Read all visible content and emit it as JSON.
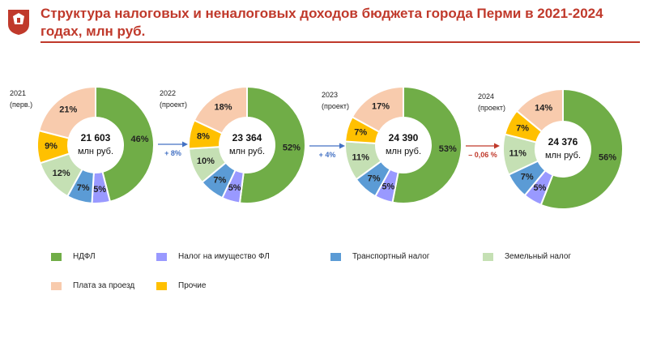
{
  "title": "Структура налоговых и неналоговых доходов бюджета города Перми в 2021-2024 годах, млн руб.",
  "colors": {
    "ndfl": "#70ad47",
    "property": "#9999ff",
    "transport": "#5b9bd5",
    "land": "#c5e0b4",
    "travel": "#f8cbad",
    "other": "#ffc000",
    "title": "#c0392b",
    "arrow_up": "#4472c4",
    "arrow_down": "#c0392b"
  },
  "chart_data": [
    {
      "type": "pie",
      "year_label": "2021",
      "status_label": "(перв.)",
      "total": "21 603",
      "unit": "млн руб.",
      "slices": [
        {
          "key": "ndfl",
          "value": 46,
          "label": "46%"
        },
        {
          "key": "property",
          "value": 5,
          "label": "5%"
        },
        {
          "key": "transport",
          "value": 7,
          "label": "7%"
        },
        {
          "key": "land",
          "value": 12,
          "label": "12%"
        },
        {
          "key": "other",
          "value": 9,
          "label": "9%"
        },
        {
          "key": "travel",
          "value": 21,
          "label": "21%"
        }
      ]
    },
    {
      "type": "pie",
      "year_label": "2022",
      "status_label": "(проект)",
      "total": "23 364",
      "unit": "млн руб.",
      "slices": [
        {
          "key": "ndfl",
          "value": 52,
          "label": "52%"
        },
        {
          "key": "property",
          "value": 5,
          "label": "5%"
        },
        {
          "key": "transport",
          "value": 7,
          "label": "7%"
        },
        {
          "key": "land",
          "value": 10,
          "label": "10%"
        },
        {
          "key": "other",
          "value": 8,
          "label": "8%"
        },
        {
          "key": "travel",
          "value": 18,
          "label": "18%"
        }
      ]
    },
    {
      "type": "pie",
      "year_label": "2023",
      "status_label": "(проект)",
      "total": "24 390",
      "unit": "млн руб.",
      "slices": [
        {
          "key": "ndfl",
          "value": 53,
          "label": "53%"
        },
        {
          "key": "property",
          "value": 5,
          "label": "5%"
        },
        {
          "key": "transport",
          "value": 7,
          "label": "7%"
        },
        {
          "key": "land",
          "value": 11,
          "label": "11%"
        },
        {
          "key": "other",
          "value": 7,
          "label": "7%"
        },
        {
          "key": "travel",
          "value": 17,
          "label": "17%"
        }
      ]
    },
    {
      "type": "pie",
      "year_label": "2024",
      "status_label": "(проект)",
      "total": "24 376",
      "unit": "млн руб.",
      "slices": [
        {
          "key": "ndfl",
          "value": 56,
          "label": "56%"
        },
        {
          "key": "property",
          "value": 5,
          "label": "5%"
        },
        {
          "key": "transport",
          "value": 7,
          "label": "7%"
        },
        {
          "key": "land",
          "value": 11,
          "label": "11%"
        },
        {
          "key": "other",
          "value": 7,
          "label": "7%"
        },
        {
          "key": "travel",
          "value": 14,
          "label": "14%"
        }
      ]
    }
  ],
  "changes": [
    {
      "label": "+ 8%",
      "direction": "up"
    },
    {
      "label": "+ 4%",
      "direction": "up"
    },
    {
      "label": "– 0,06 %",
      "direction": "down"
    }
  ],
  "legend": [
    {
      "key": "ndfl",
      "label": "НДФЛ"
    },
    {
      "key": "property",
      "label": "Налог на имущество ФЛ"
    },
    {
      "key": "transport",
      "label": "Транспортный налог"
    },
    {
      "key": "land",
      "label": "Земельный налог"
    },
    {
      "key": "travel",
      "label": "Плата за проезд"
    },
    {
      "key": "other",
      "label": "Прочие"
    }
  ]
}
